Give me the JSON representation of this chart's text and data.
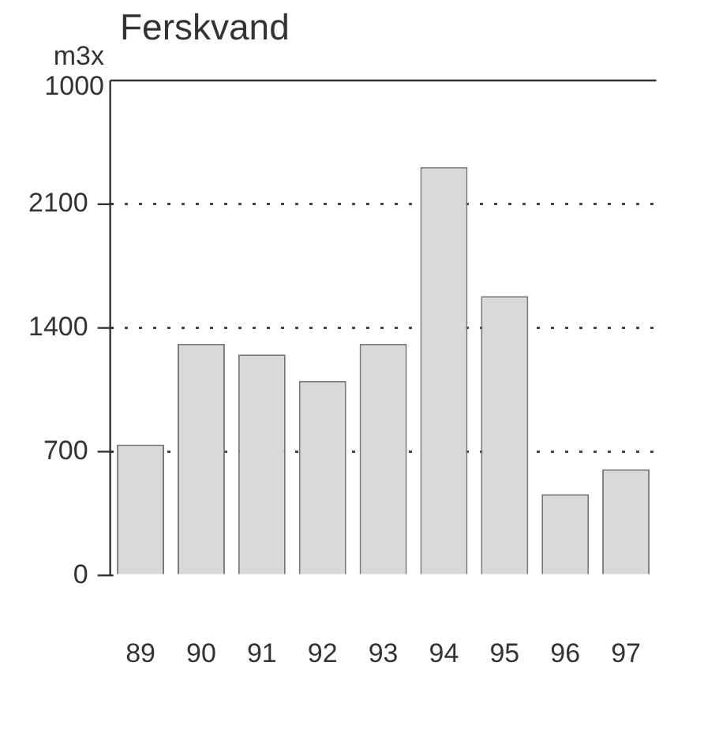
{
  "chart_data": {
    "type": "bar",
    "title": "Ferskvand",
    "ylabel": "m3x 1000",
    "categories": [
      "89",
      "90",
      "91",
      "92",
      "93",
      "94",
      "95",
      "96",
      "97"
    ],
    "values": [
      740,
      1310,
      1250,
      1100,
      1310,
      2310,
      1580,
      460,
      600
    ],
    "color": "#d9d9d9",
    "ylim": [
      0,
      2800
    ],
    "yticks": [
      0,
      700,
      1400,
      2100
    ],
    "grid": "y",
    "legend": false
  }
}
